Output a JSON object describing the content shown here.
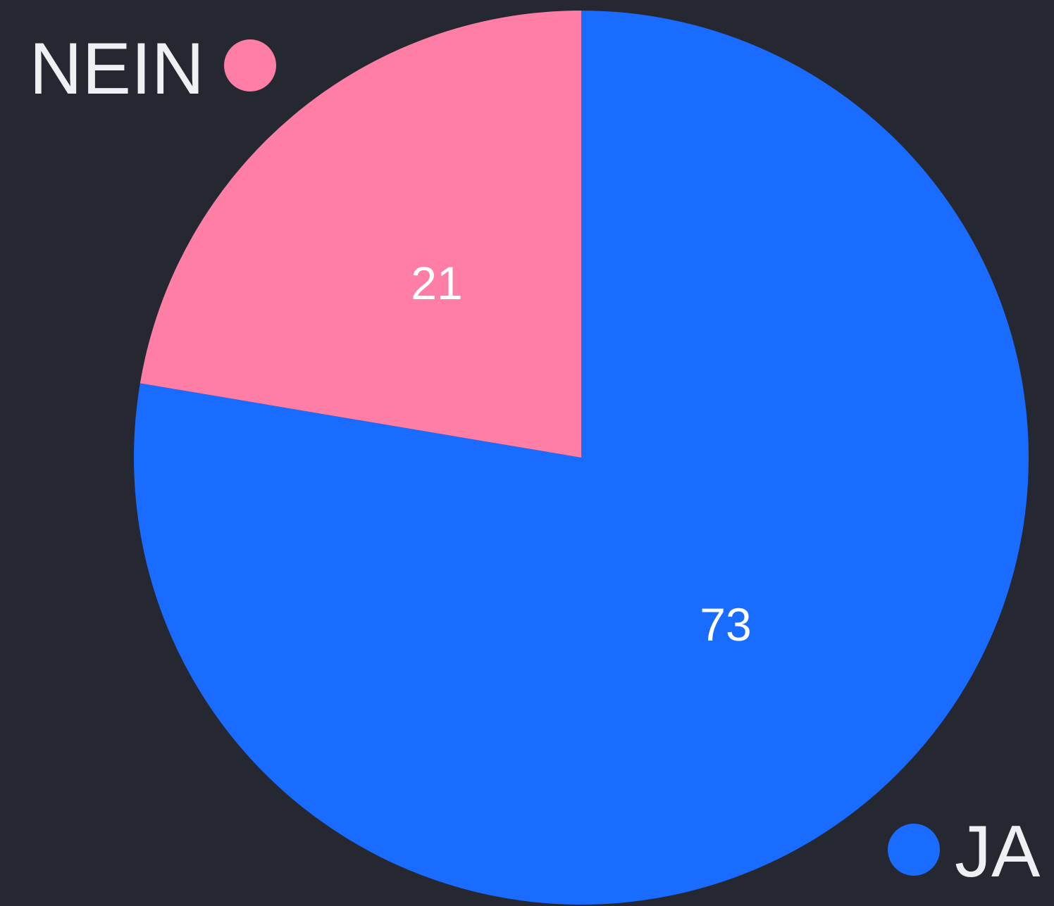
{
  "chart_data": {
    "type": "pie",
    "categories": [
      "JA",
      "NEIN"
    ],
    "values": [
      73,
      21
    ],
    "colors": [
      "#1a6bff",
      "#ff7ea6"
    ]
  }
}
